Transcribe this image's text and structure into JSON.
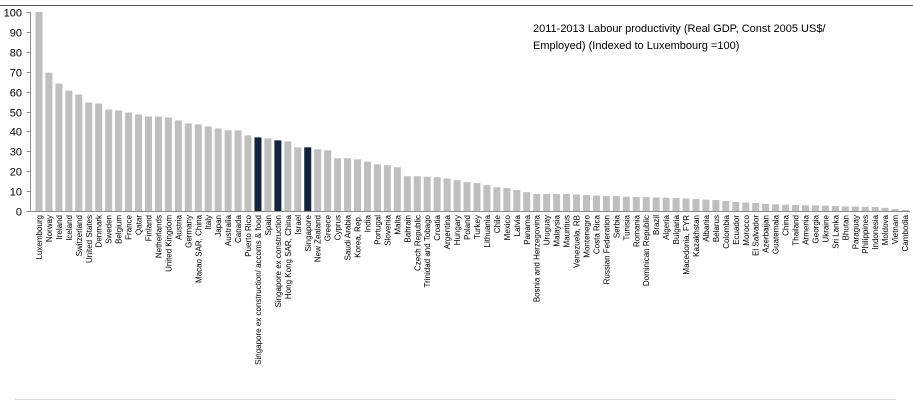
{
  "chart_data": {
    "type": "bar",
    "title_lines": [
      "2011-2013 Labour productivity (Real GDP, Const 2005 US$/",
      "Employed) (Indexed to Luxembourg =100)"
    ],
    "ylim": [
      0,
      100
    ],
    "yticks": [
      0,
      10,
      20,
      30,
      40,
      50,
      60,
      70,
      80,
      90,
      100
    ],
    "grid": false,
    "colors": {
      "bar": "#bfbfbf",
      "highlight": "#14233e",
      "border": "#595959",
      "footer_rule": "#d9d9d9"
    },
    "highlighted_indices": [
      22,
      24,
      27
    ],
    "categories": [
      "Luxembourg",
      "Norway",
      "Ireland",
      "Iceland",
      "Switzerland",
      "United States",
      "Denmark",
      "Sweden",
      "Belgium",
      "France",
      "Qatar",
      "Finland",
      "Netherlands",
      "United Kingdom",
      "Austria",
      "Germany",
      "Macao SAR, China",
      "Italy",
      "Japan",
      "Australia",
      "Canada",
      "Puerto Rico",
      "Singapore ex construction/ accoms & food",
      "Spain",
      "Singapore ex construction",
      "Hong Kong SAR, China",
      "Israel",
      "Singapore",
      "New Zealand",
      "Greece",
      "Cyprus",
      "Saudi Arabia",
      "Korea, Rep.",
      "India",
      "Portugal",
      "Slovenia",
      "Malta",
      "Bahrain",
      "Czech Republic",
      "Trinidad and Tobago",
      "Croatia",
      "Argentina",
      "Hungary",
      "Poland",
      "Turkey",
      "Lithuania",
      "Chile",
      "Mexico",
      "Latvia",
      "Panama",
      "Bosnia and Herzegovina",
      "Uruguay",
      "Malaysia",
      "Mauritius",
      "Venezuela, RB",
      "Montenegro",
      "Costa Rica",
      "Russian Federation",
      "Serbia",
      "Tunisia",
      "Romania",
      "Dominican Republic",
      "Brazil",
      "Algeria",
      "Bulgaria",
      "Macedonia, FYR",
      "Kazakhstan",
      "Albania",
      "Belarus",
      "Colombia",
      "Ecuador",
      "Morocco",
      "El Salvador",
      "Azerbaijan",
      "Guatemala",
      "China",
      "Thailand",
      "Armenia",
      "Georgia",
      "Ukraine",
      "Sri Lanka",
      "Bhutan",
      "Paraguay",
      "Philippines",
      "Indonesia",
      "Moldova",
      "Vietnam",
      "Cambodia"
    ],
    "values": [
      100,
      69.5,
      64,
      60.5,
      58.5,
      54.5,
      54,
      51,
      50.5,
      49.5,
      48.5,
      47.5,
      47.5,
      47,
      45.5,
      44,
      43.5,
      42.5,
      41.5,
      40.5,
      40.5,
      38,
      37,
      36.5,
      35.5,
      35,
      32,
      32,
      31,
      30.5,
      26.5,
      26.5,
      26,
      24.8,
      23.5,
      23,
      22,
      17.5,
      17.5,
      17.2,
      17,
      16.3,
      15.5,
      14.5,
      14,
      13,
      12,
      11.5,
      10.5,
      9.5,
      8.5,
      8.5,
      8.5,
      8.5,
      8.3,
      8,
      7.8,
      7.5,
      7.5,
      7.2,
      7,
      7,
      6.8,
      6.7,
      6.5,
      6.3,
      6,
      5.7,
      5.5,
      5,
      4.6,
      4.2,
      4,
      3.6,
      3.4,
      3.1,
      3,
      2.9,
      2.8,
      2.7,
      2.5,
      2.3,
      2.2,
      2.1,
      2,
      1.6,
      1,
      0.6
    ]
  }
}
